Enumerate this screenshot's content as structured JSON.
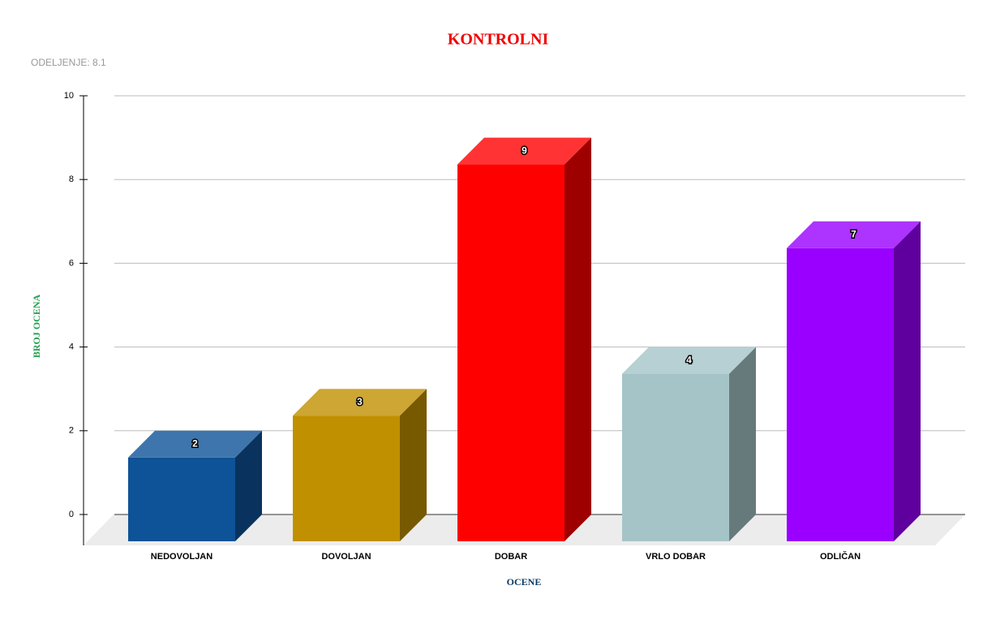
{
  "chart_data": {
    "type": "bar3d",
    "title": "KONTROLNI",
    "subtitle": "ODELJENJE: 8.1",
    "x_label": "OCENE",
    "y_label": "BROJ OCENA",
    "categories": [
      "NEDOVOLJAN",
      "DOVOLJAN",
      "DOBAR",
      "VRLO DOBAR",
      "ODLIČAN"
    ],
    "values": [
      2,
      3,
      9,
      4,
      7
    ],
    "colors": [
      "#0e5297",
      "#c09000",
      "#ff0000",
      "#a5c4c8",
      "#9900ff"
    ],
    "ylim": [
      0,
      10
    ],
    "yticks": [
      0,
      2,
      4,
      6,
      8,
      10
    ],
    "grid": true
  }
}
